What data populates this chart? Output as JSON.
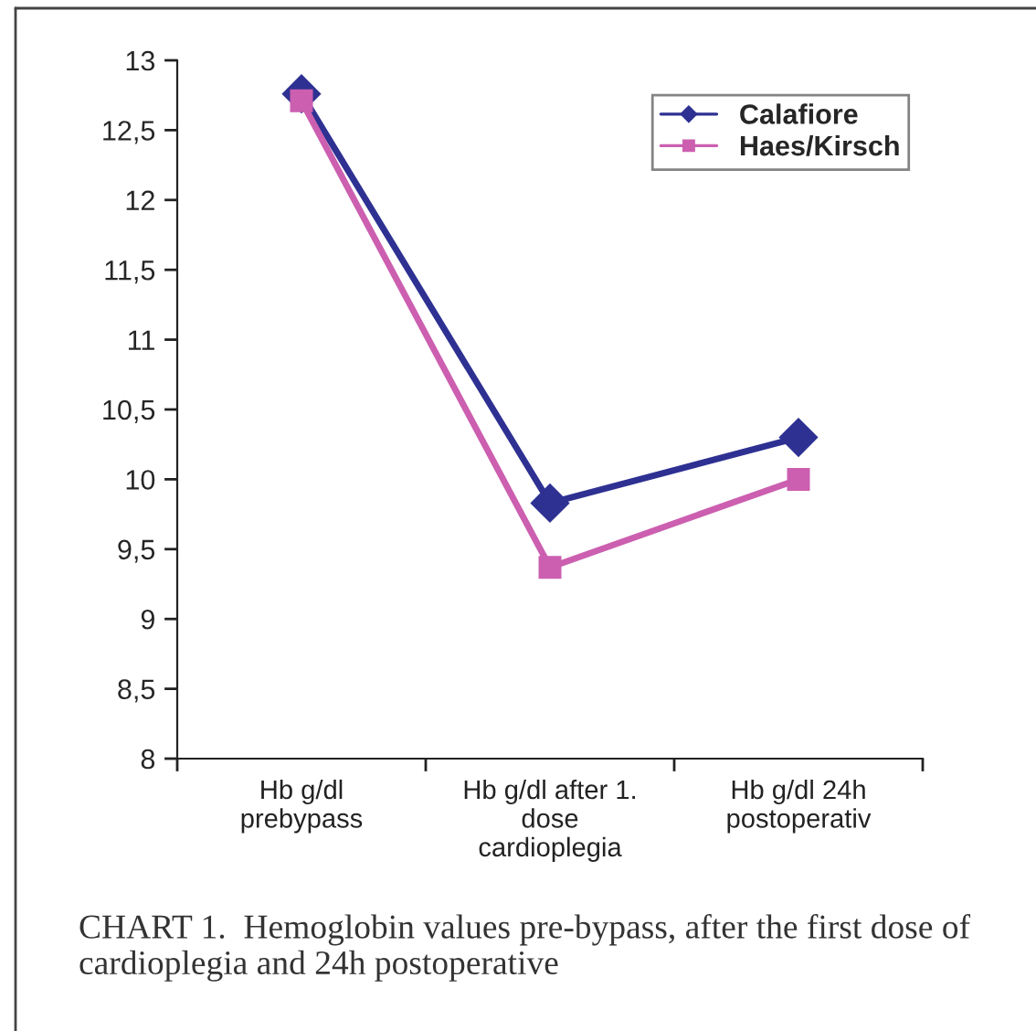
{
  "chart_data": {
    "type": "line",
    "categories": [
      "Hb g/dl\nprebypass",
      "Hb g/dl after 1.\ndose\ncardioplegia",
      "Hb g/dl 24h\npostoperativ"
    ],
    "series": [
      {
        "name": "Calafiore",
        "color": "#2e3192",
        "marker": "diamond",
        "values": [
          12.76,
          9.83,
          10.3
        ]
      },
      {
        "name": "Haes/Kirsch",
        "color": "#cc5fb0",
        "marker": "square",
        "values": [
          12.71,
          9.37,
          10.0
        ]
      }
    ],
    "ylim": [
      8,
      13
    ],
    "yticks": [
      8,
      {
        "value": 8.5,
        "label": "8,5"
      },
      9,
      {
        "value": 9.5,
        "label": "9,5"
      },
      10,
      {
        "value": 10.5,
        "label": "10,5"
      },
      11,
      {
        "value": 11.5,
        "label": "11,5"
      },
      12,
      {
        "value": 12.5,
        "label": "12,5"
      },
      13
    ],
    "grid": false,
    "legend": "top right",
    "line_style": "solid",
    "annotations": [
      "CHART 1.  Hemoglobin values pre-bypass, after the first dose of cardioplegia and 24h postoperative"
    ]
  }
}
